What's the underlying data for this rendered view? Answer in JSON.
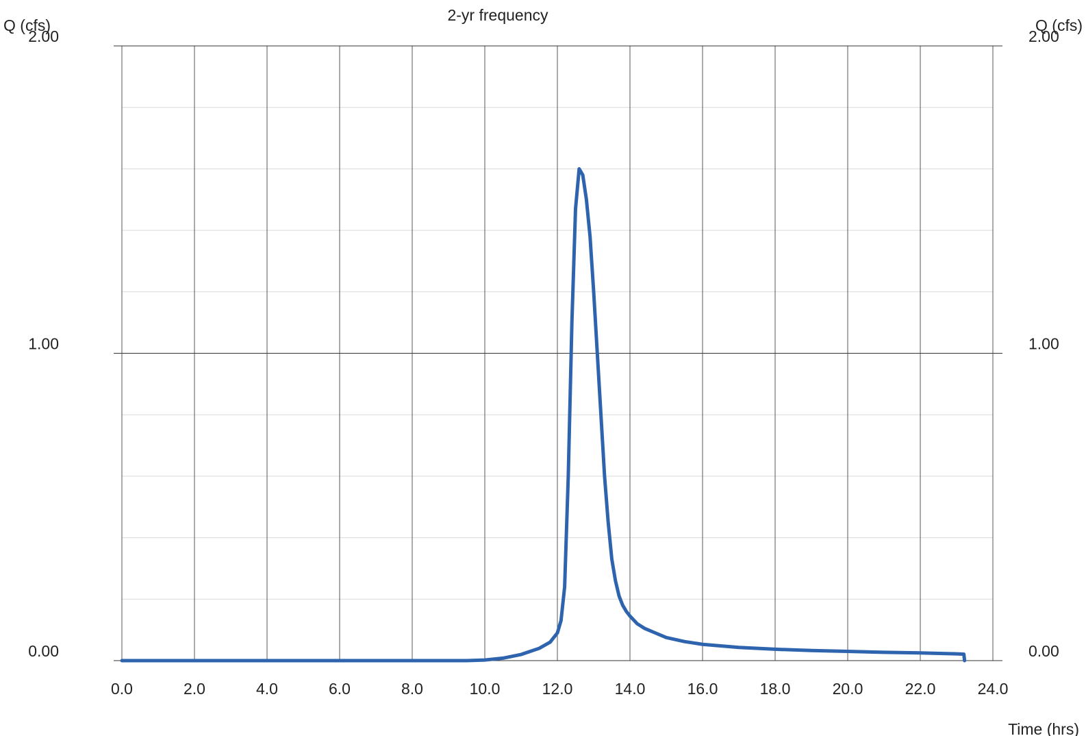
{
  "chart_data": {
    "type": "line",
    "title": "2-yr frequency",
    "xlabel": "Time (hrs)",
    "ylabel_left": "Q (cfs)",
    "ylabel_right": "Q (cfs)",
    "xlim": [
      0.0,
      24.0
    ],
    "ylim": [
      0.0,
      2.0
    ],
    "x_ticks": [
      "0.0",
      "2.0",
      "4.0",
      "6.0",
      "8.0",
      "10.0",
      "12.0",
      "14.0",
      "16.0",
      "18.0",
      "20.0",
      "22.0",
      "24.0"
    ],
    "y_ticks": [
      "0.00",
      "1.00",
      "2.00"
    ],
    "grid": true,
    "series_color": "#2e63ae",
    "series": [
      {
        "x": [
          0.0,
          2.0,
          4.0,
          6.0,
          8.0,
          9.5,
          10.0,
          10.5,
          11.0,
          11.5,
          11.8,
          12.0,
          12.1,
          12.2,
          12.3,
          12.4,
          12.5,
          12.6,
          12.7,
          12.8,
          12.9,
          13.0,
          13.1,
          13.2,
          13.3,
          13.4,
          13.5,
          13.6,
          13.7,
          13.8,
          13.9,
          14.0,
          14.2,
          14.4,
          14.7,
          15.0,
          15.5,
          16.0,
          17.0,
          18.0,
          19.0,
          20.0,
          21.0,
          22.0,
          23.0,
          23.2,
          23.22
        ],
        "y": [
          0.0,
          0.0,
          0.0,
          0.0,
          0.0,
          0.0,
          0.002,
          0.008,
          0.02,
          0.04,
          0.06,
          0.09,
          0.13,
          0.24,
          0.6,
          1.1,
          1.47,
          1.6,
          1.58,
          1.5,
          1.38,
          1.2,
          1.0,
          0.8,
          0.6,
          0.45,
          0.33,
          0.26,
          0.21,
          0.18,
          0.16,
          0.145,
          0.12,
          0.105,
          0.09,
          0.075,
          0.062,
          0.053,
          0.043,
          0.037,
          0.033,
          0.03,
          0.027,
          0.025,
          0.022,
          0.021,
          0.0
        ]
      }
    ]
  }
}
